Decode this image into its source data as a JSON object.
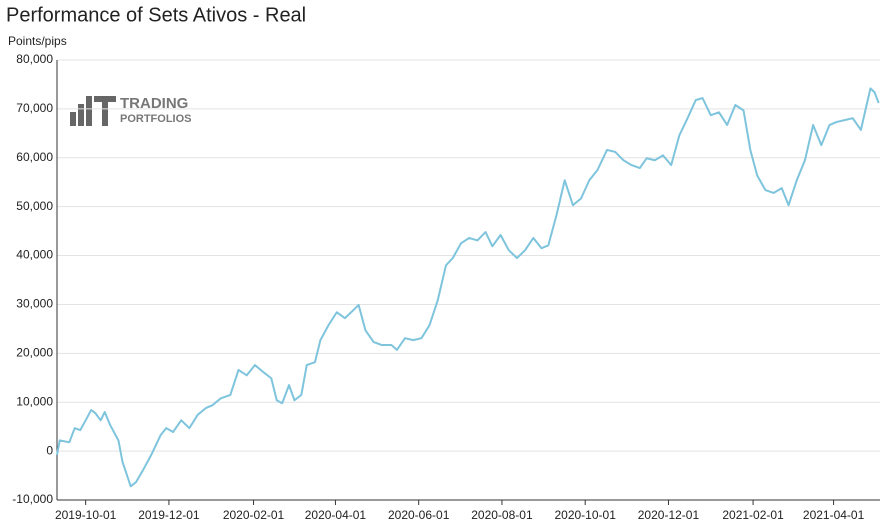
{
  "chart_data": {
    "type": "line",
    "title": "Performance of Sets Ativos - Real",
    "y_label": "Points/pips",
    "logo_text": [
      "TRADING",
      "PORTFOLIOS"
    ],
    "grid": true,
    "ylim": [
      -10000,
      80000
    ],
    "yticks": [
      {
        "value": -10000,
        "label": "-10,000"
      },
      0,
      {
        "value": 10000,
        "label": "10,000"
      },
      {
        "value": 20000,
        "label": "20,000"
      },
      {
        "value": 30000,
        "label": "30,000"
      },
      {
        "value": 40000,
        "label": "40,000"
      },
      {
        "value": 50000,
        "label": "50,000"
      },
      {
        "value": 60000,
        "label": "60,000"
      },
      {
        "value": 70000,
        "label": "70,000"
      },
      {
        "value": 80000,
        "label": "80,000"
      }
    ],
    "xlim": [
      "2019-09-10",
      "2021-05-05"
    ],
    "xticks": [
      "2019-10-01",
      "2019-12-01",
      "2020-02-01",
      "2020-04-01",
      "2020-06-01",
      "2020-08-01",
      "2020-10-01",
      "2020-12-01",
      "2021-02-01",
      "2021-04-01"
    ],
    "x": [
      "2019-09-10",
      "2019-09-12",
      "2019-09-19",
      "2019-09-23",
      "2019-09-27",
      "2019-10-01",
      "2019-10-05",
      "2019-10-08",
      "2019-10-12",
      "2019-10-15",
      "2019-10-19",
      "2019-10-25",
      "2019-10-28",
      "2019-11-03",
      "2019-11-07",
      "2019-11-12",
      "2019-11-18",
      "2019-11-25",
      "2019-11-29",
      "2019-12-04",
      "2019-12-10",
      "2019-12-16",
      "2019-12-22",
      "2019-12-28",
      "2020-01-02",
      "2020-01-08",
      "2020-01-15",
      "2020-01-21",
      "2020-01-27",
      "2020-02-02",
      "2020-02-08",
      "2020-02-14",
      "2020-02-18",
      "2020-02-22",
      "2020-02-27",
      "2020-03-02",
      "2020-03-07",
      "2020-03-11",
      "2020-03-17",
      "2020-03-21",
      "2020-03-27",
      "2020-04-02",
      "2020-04-08",
      "2020-04-14",
      "2020-04-18",
      "2020-04-23",
      "2020-04-29",
      "2020-05-05",
      "2020-05-12",
      "2020-05-16",
      "2020-05-22",
      "2020-05-28",
      "2020-06-03",
      "2020-06-09",
      "2020-06-15",
      "2020-06-21",
      "2020-06-26",
      "2020-07-02",
      "2020-07-08",
      "2020-07-14",
      "2020-07-20",
      "2020-07-25",
      "2020-07-31",
      "2020-08-06",
      "2020-08-12",
      "2020-08-18",
      "2020-08-24",
      "2020-08-30",
      "2020-09-04",
      "2020-09-10",
      "2020-09-16",
      "2020-09-22",
      "2020-09-28",
      "2020-10-04",
      "2020-10-10",
      "2020-10-17",
      "2020-10-23",
      "2020-10-29",
      "2020-11-04",
      "2020-11-10",
      "2020-11-15",
      "2020-11-21",
      "2020-11-27",
      "2020-12-03",
      "2020-12-09",
      "2020-12-15",
      "2020-12-21",
      "2020-12-26",
      "2021-01-01",
      "2021-01-07",
      "2021-01-13",
      "2021-01-19",
      "2021-01-25",
      "2021-01-30",
      "2021-02-04",
      "2021-02-10",
      "2021-02-16",
      "2021-02-22",
      "2021-02-27",
      "2021-03-05",
      "2021-03-11",
      "2021-03-17",
      "2021-03-23",
      "2021-03-29",
      "2021-04-03",
      "2021-04-09",
      "2021-04-15",
      "2021-04-21",
      "2021-04-26",
      "2021-04-28",
      "2021-05-01",
      "2021-05-04"
    ],
    "series": [
      {
        "name": "Sets Ativos",
        "color": "#7ec4dd",
        "values": [
          -800,
          2200,
          1800,
          4700,
          4300,
          6300,
          8400,
          7800,
          6300,
          8000,
          5300,
          2200,
          -2200,
          -7200,
          -6300,
          -3900,
          -800,
          3300,
          4700,
          3900,
          6300,
          4700,
          7400,
          8800,
          9400,
          10800,
          11500,
          16600,
          15500,
          17600,
          16200,
          14900,
          10400,
          9800,
          13500,
          10400,
          11500,
          17600,
          18200,
          22700,
          25800,
          28400,
          27200,
          28800,
          29900,
          24700,
          22300,
          21700,
          21700,
          20700,
          23100,
          22700,
          23100,
          25800,
          30900,
          38000,
          39500,
          42500,
          43600,
          43100,
          44800,
          41900,
          44200,
          41100,
          39500,
          41100,
          43600,
          41500,
          42100,
          48300,
          55400,
          50300,
          51700,
          55400,
          57500,
          61600,
          61200,
          59500,
          58500,
          57900,
          59900,
          59500,
          60500,
          58500,
          64600,
          68100,
          71800,
          72200,
          68700,
          69300,
          66700,
          70800,
          69700,
          61600,
          56400,
          53400,
          52800,
          53800,
          50300,
          55400,
          59500,
          66700,
          62600,
          66700,
          67300,
          67700,
          68100,
          65700,
          71800,
          74200,
          73400,
          71200
        ]
      }
    ]
  }
}
